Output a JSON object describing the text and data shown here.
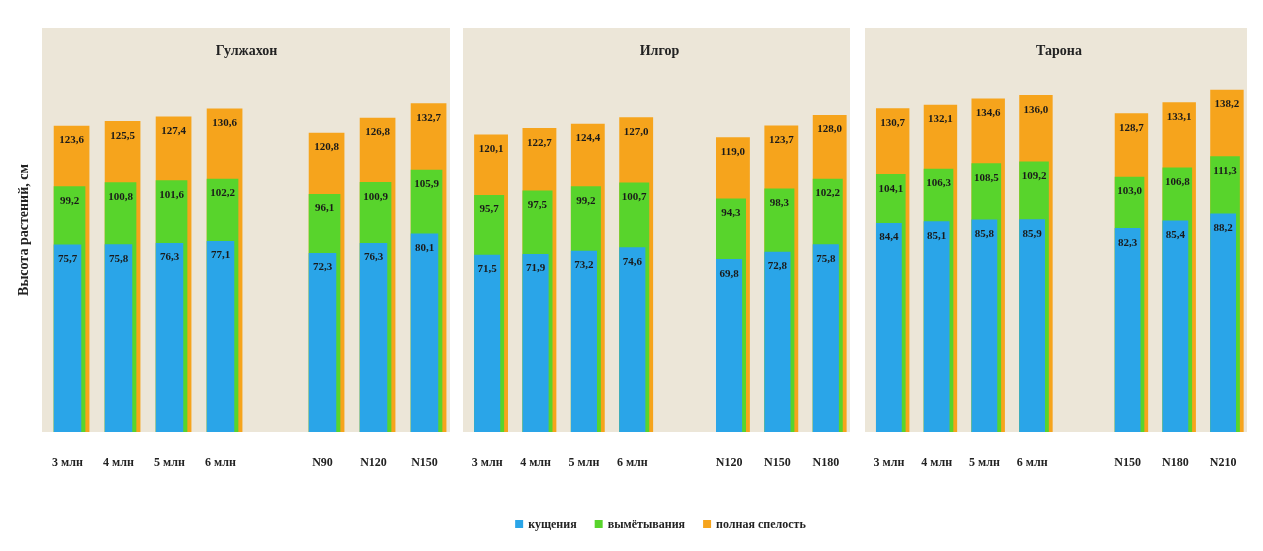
{
  "chart_data": [
    {
      "type": "bar",
      "title": "Гулжахон",
      "ylabel": "Высота растений, см",
      "categories": [
        "3 млн",
        "4 млн",
        "5 млн",
        "6 млн",
        null,
        "N90",
        "N120",
        "N150"
      ],
      "series": [
        {
          "color": "#2aa5e8",
          "values": [
            75.7,
            75.8,
            76.3,
            77.1,
            null,
            72.3,
            76.3,
            80.1
          ],
          "value_labels": [
            "75,7",
            "75,8",
            "76,3",
            "77,1",
            null,
            "72,3",
            "76,3",
            "80,1"
          ]
        },
        {
          "color": "#58d42c",
          "values": [
            99.2,
            100.8,
            101.6,
            102.2,
            null,
            96.1,
            100.9,
            105.9
          ],
          "value_labels": [
            "99,2",
            "100,8",
            "101,6",
            "102,2",
            null,
            "96,1",
            "100,9",
            "105,9"
          ]
        },
        {
          "color": "#f6a41c",
          "values": [
            123.6,
            125.5,
            127.4,
            130.6,
            null,
            120.8,
            126.8,
            132.7
          ],
          "value_labels": [
            "123,6",
            "125,5",
            "127,4",
            "130,6",
            null,
            "120,8",
            "126,8",
            "132,7"
          ]
        }
      ]
    },
    {
      "type": "bar",
      "title": "Илгор",
      "categories": [
        "3 млн",
        "4 млн",
        "5 млн",
        "6 млн",
        null,
        "N120",
        "N150",
        "N180"
      ],
      "legend": "bottom",
      "series": [
        {
          "name": "кущения",
          "color": "#2aa5e8",
          "values": [
            71.5,
            71.9,
            73.2,
            74.6,
            null,
            69.8,
            72.8,
            75.8
          ],
          "value_labels": [
            "71,5",
            "71,9",
            "73,2",
            "74,6",
            null,
            "69,8",
            "72,8",
            "75,8"
          ]
        },
        {
          "name": "вымётывания",
          "color": "#58d42c",
          "values": [
            95.7,
            97.5,
            99.2,
            100.7,
            null,
            94.3,
            98.3,
            102.2
          ],
          "value_labels": [
            "95,7",
            "97,5",
            "99,2",
            "100,7",
            null,
            "94,3",
            "98,3",
            "102,2"
          ]
        },
        {
          "name": "полная спелость",
          "color": "#f6a41c",
          "values": [
            120.1,
            122.7,
            124.4,
            127.0,
            null,
            119.0,
            123.7,
            128.0
          ],
          "value_labels": [
            "120,1",
            "122,7",
            "124,4",
            "127,0",
            null,
            "119,0",
            "123,7",
            "128,0"
          ]
        }
      ]
    },
    {
      "type": "bar",
      "title": "Тарона",
      "categories": [
        "3 млн",
        "4 млн",
        "5 млн",
        "6 млн",
        null,
        "N150",
        "N180",
        "N210"
      ],
      "series": [
        {
          "color": "#2aa5e8",
          "values": [
            84.4,
            85.1,
            85.8,
            85.9,
            null,
            82.3,
            85.4,
            88.2
          ],
          "value_labels": [
            "84,4",
            "85,1",
            "85,8",
            "85,9",
            null,
            "82,3",
            "85,4",
            "88,2"
          ]
        },
        {
          "color": "#58d42c",
          "values": [
            104.1,
            106.3,
            108.5,
            109.2,
            null,
            103.0,
            106.8,
            111.3
          ],
          "value_labels": [
            "104,1",
            "106,3",
            "108,5",
            "109,2",
            null,
            "103,0",
            "106,8",
            "111,3"
          ]
        },
        {
          "color": "#f6a41c",
          "values": [
            130.7,
            132.1,
            134.6,
            136.0,
            null,
            128.7,
            133.1,
            138.2
          ],
          "value_labels": [
            "130,7",
            "132,1",
            "134,6",
            "136,0",
            null,
            "128,7",
            "133,1",
            "138,2"
          ]
        }
      ]
    }
  ]
}
